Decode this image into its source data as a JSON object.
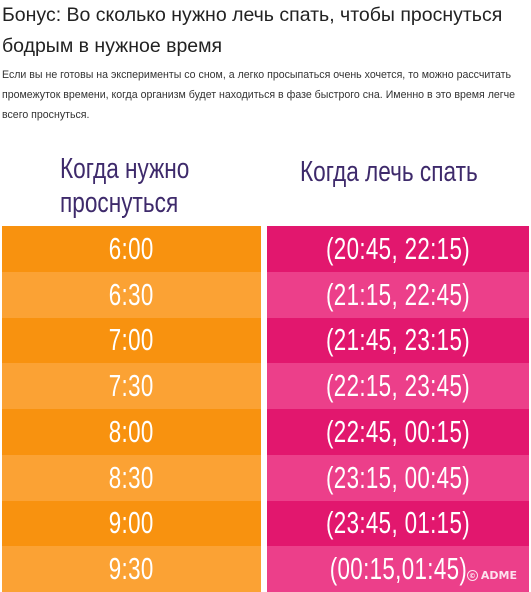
{
  "header": {
    "title": "Бонус: Во сколько нужно лечь спать, чтобы проснуться бодрым в нужное время",
    "intro": "Если вы не готовы на эксперименты со сном, а легко просыпаться очень хочется, то можно рассчитать промежуток времени, когда организм будет находиться в фазе быстрого сна. Именно в это время легче всего проснуться."
  },
  "table": {
    "headers": {
      "wake": "Когда нужно проснуться",
      "sleep": "Когда лечь спать"
    },
    "rows": [
      {
        "wake": "6:00",
        "sleep": "(20:45, 22:15)"
      },
      {
        "wake": "6:30",
        "sleep": "(21:15, 22:45)"
      },
      {
        "wake": "7:00",
        "sleep": "(21:45, 23:15)"
      },
      {
        "wake": "7:30",
        "sleep": "(22:15, 23:45)"
      },
      {
        "wake": "8:00",
        "sleep": "(22:45, 00:15)"
      },
      {
        "wake": "8:30",
        "sleep": "(23:15, 00:45)"
      },
      {
        "wake": "9:00",
        "sleep": "(23:45, 01:15)"
      },
      {
        "wake": "9:30",
        "sleep": "(00:15,01:45)"
      }
    ],
    "colors": {
      "wake_dark": "#f8920f",
      "wake_light": "#fba234",
      "sleep_dark": "#e2176e",
      "sleep_light": "#ec3f8a",
      "header_text": "#3e2a6b"
    }
  },
  "watermark": {
    "icon": "copyright-icon",
    "text": "ADME"
  }
}
